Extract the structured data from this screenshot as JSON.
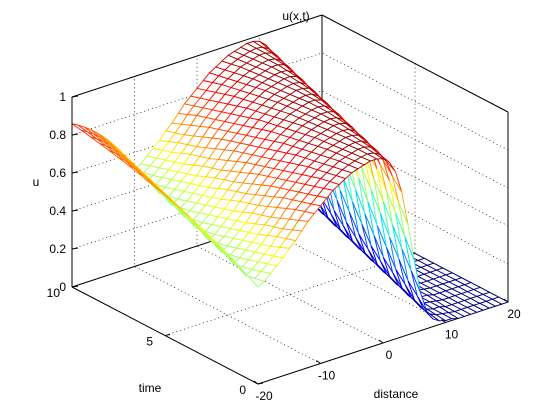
{
  "chart_data": {
    "type": "surface",
    "title": "u(x,t)",
    "xlabel": "distance",
    "ylabel": "time",
    "zlabel": "u",
    "xlim": [
      -20,
      20
    ],
    "ylim": [
      0,
      10
    ],
    "zlim": [
      0,
      1
    ],
    "x_ticks": [
      -20,
      -10,
      0,
      10,
      20
    ],
    "y_ticks": [
      0,
      5,
      10
    ],
    "z_ticks": [
      0,
      0.2,
      0.4,
      0.6,
      0.8,
      1
    ],
    "x_tick_labels": [
      "-20",
      "-10",
      "0",
      "10",
      "20"
    ],
    "y_tick_labels": [
      "0",
      "5",
      "10"
    ],
    "z_tick_labels": [
      "0",
      "0.2",
      "0.4",
      "0.6",
      "0.8",
      "1"
    ],
    "grid": true,
    "colormap": "jet",
    "mesh_x_count": 41,
    "mesh_t_count": 21,
    "u_at_t0": [
      0.51,
      0.53,
      0.56,
      0.59,
      0.62,
      0.66,
      0.69,
      0.73,
      0.77,
      0.8,
      0.83,
      0.86,
      0.89,
      0.91,
      0.93,
      0.95,
      0.96,
      0.97,
      0.98,
      0.98,
      0.97,
      0.94,
      0.88,
      0.76,
      0.58,
      0.38,
      0.2,
      0.09,
      0.04,
      0.02,
      0.01,
      0.01,
      0.0,
      0.0,
      0.0,
      0.0,
      0.0,
      0.0,
      0.0,
      0.0,
      0.0
    ],
    "front_speed": 1.0
  }
}
